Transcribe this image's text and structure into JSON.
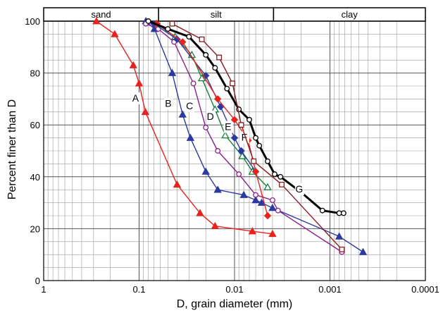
{
  "chart_data": {
    "type": "line",
    "xlabel": "D, grain diameter (mm)",
    "ylabel": "Percent finer than D",
    "x_scale": "log-reversed",
    "xlim": [
      1,
      0.0001
    ],
    "ylim": [
      0,
      100
    ],
    "x_ticks": [
      {
        "value": 1,
        "label": "1"
      },
      {
        "value": 0.1,
        "label": "0.1"
      },
      {
        "value": 0.01,
        "label": "0.01"
      },
      {
        "value": 0.001,
        "label": "0.001"
      },
      {
        "value": 0.0001,
        "label": "0.0001"
      }
    ],
    "y_ticks": [
      {
        "value": 0,
        "label": "0"
      },
      {
        "value": 20,
        "label": "20"
      },
      {
        "value": 40,
        "label": "40"
      },
      {
        "value": 60,
        "label": "60"
      },
      {
        "value": 80,
        "label": "80"
      },
      {
        "value": 100,
        "label": "100"
      }
    ],
    "grid": true,
    "size_classes": [
      {
        "label": "sand",
        "from": 1,
        "to": 0.0625
      },
      {
        "label": "silt",
        "from": 0.0625,
        "to": 0.0039
      },
      {
        "label": "clay",
        "from": 0.0039,
        "to": 0.0001
      }
    ],
    "series": [
      {
        "name": "A",
        "color": "#e8231d",
        "marker": "triangle",
        "marker_fill": "filled",
        "label_at": [
          0.109,
          69
        ],
        "points": [
          [
            0.28,
            100
          ],
          [
            0.18,
            95
          ],
          [
            0.115,
            83
          ],
          [
            0.1,
            76
          ],
          [
            0.086,
            65
          ],
          [
            0.04,
            37
          ],
          [
            0.023,
            26
          ],
          [
            0.016,
            21
          ],
          [
            0.0065,
            19
          ],
          [
            0.004,
            18
          ]
        ]
      },
      {
        "name": "B",
        "color": "#2b3aa0",
        "marker": "triangle",
        "marker_fill": "filled",
        "label_at": [
          0.0495,
          67
        ],
        "points": [
          [
            0.085,
            100
          ],
          [
            0.069,
            97
          ],
          [
            0.045,
            80
          ],
          [
            0.035,
            64
          ],
          [
            0.029,
            55
          ],
          [
            0.02,
            42
          ],
          [
            0.015,
            35
          ],
          [
            0.008,
            33
          ],
          [
            0.006,
            31
          ],
          [
            0.0052,
            30
          ],
          [
            0.004,
            28
          ],
          [
            0.0008,
            17
          ],
          [
            0.00045,
            11
          ]
        ]
      },
      {
        "name": "C",
        "color": "#8b1f8b",
        "marker": "circle",
        "marker_fill": "open",
        "label_at": [
          0.0296,
          66
        ],
        "points": [
          [
            0.085,
            99
          ],
          [
            0.063,
            97
          ],
          [
            0.043,
            92
          ],
          [
            0.027,
            76
          ],
          [
            0.02,
            59
          ],
          [
            0.015,
            50
          ],
          [
            0.009,
            41
          ],
          [
            0.006,
            33
          ],
          [
            0.004,
            31
          ],
          [
            0.0035,
            27
          ],
          [
            0.00075,
            11
          ]
        ]
      },
      {
        "name": "D",
        "color": "#15803d",
        "marker": "triangle",
        "marker_fill": "open",
        "label_at": [
          0.0179,
          62
        ],
        "points": [
          [
            0.066,
            99
          ],
          [
            0.042,
            94
          ],
          [
            0.028,
            87
          ],
          [
            0.022,
            78
          ],
          [
            0.016,
            66
          ],
          [
            0.0125,
            56
          ],
          [
            0.0083,
            48
          ],
          [
            0.0065,
            42
          ],
          [
            0.0045,
            36
          ]
        ]
      },
      {
        "name": "E",
        "color": "#2b3aa0",
        "marker": "diamond",
        "marker_fill": "filled",
        "label_at": [
          0.0117,
          58
        ],
        "points": [
          [
            0.07,
            99
          ],
          [
            0.04,
            93
          ],
          [
            0.02,
            79
          ],
          [
            0.014,
            67
          ],
          [
            0.01,
            55
          ],
          [
            0.0085,
            50
          ],
          [
            0.006,
            42
          ]
        ]
      },
      {
        "name": "F",
        "color": "#e8231d",
        "marker": "diamond",
        "marker_fill": "filled",
        "label_at": [
          0.0079,
          54
        ],
        "points": [
          [
            0.065,
            99
          ],
          [
            0.035,
            92
          ],
          [
            0.015,
            70
          ],
          [
            0.01,
            62
          ],
          [
            0.0072,
            54
          ],
          [
            0.006,
            42
          ],
          [
            0.0045,
            25
          ]
        ]
      },
      {
        "name": "G",
        "color": "#000000",
        "marker": "circle",
        "marker_fill": "open",
        "line_width": 3,
        "label_at": [
          0.0021,
          34
        ],
        "points": [
          [
            0.08,
            100
          ],
          [
            0.05,
            97
          ],
          [
            0.03,
            94
          ],
          [
            0.02,
            87
          ],
          [
            0.016,
            82
          ],
          [
            0.012,
            74
          ],
          [
            0.009,
            66
          ],
          [
            0.007,
            62
          ],
          [
            0.006,
            55
          ],
          [
            0.0055,
            52
          ],
          [
            0.0045,
            46
          ],
          [
            0.0038,
            41
          ],
          [
            0.0033,
            40
          ],
          [
            0.002,
            34
          ],
          [
            0.0012,
            27
          ],
          [
            0.0008,
            26
          ],
          [
            0.00072,
            26
          ]
        ]
      },
      {
        "name": "",
        "color": "#8b1a1a",
        "marker": "square",
        "marker_fill": "open",
        "points": [
          [
            0.045,
            99
          ],
          [
            0.022,
            93
          ],
          [
            0.0145,
            86
          ],
          [
            0.0105,
            76
          ],
          [
            0.0085,
            60
          ],
          [
            0.0063,
            46
          ],
          [
            0.0032,
            37
          ],
          [
            0.00075,
            12
          ]
        ]
      }
    ]
  }
}
